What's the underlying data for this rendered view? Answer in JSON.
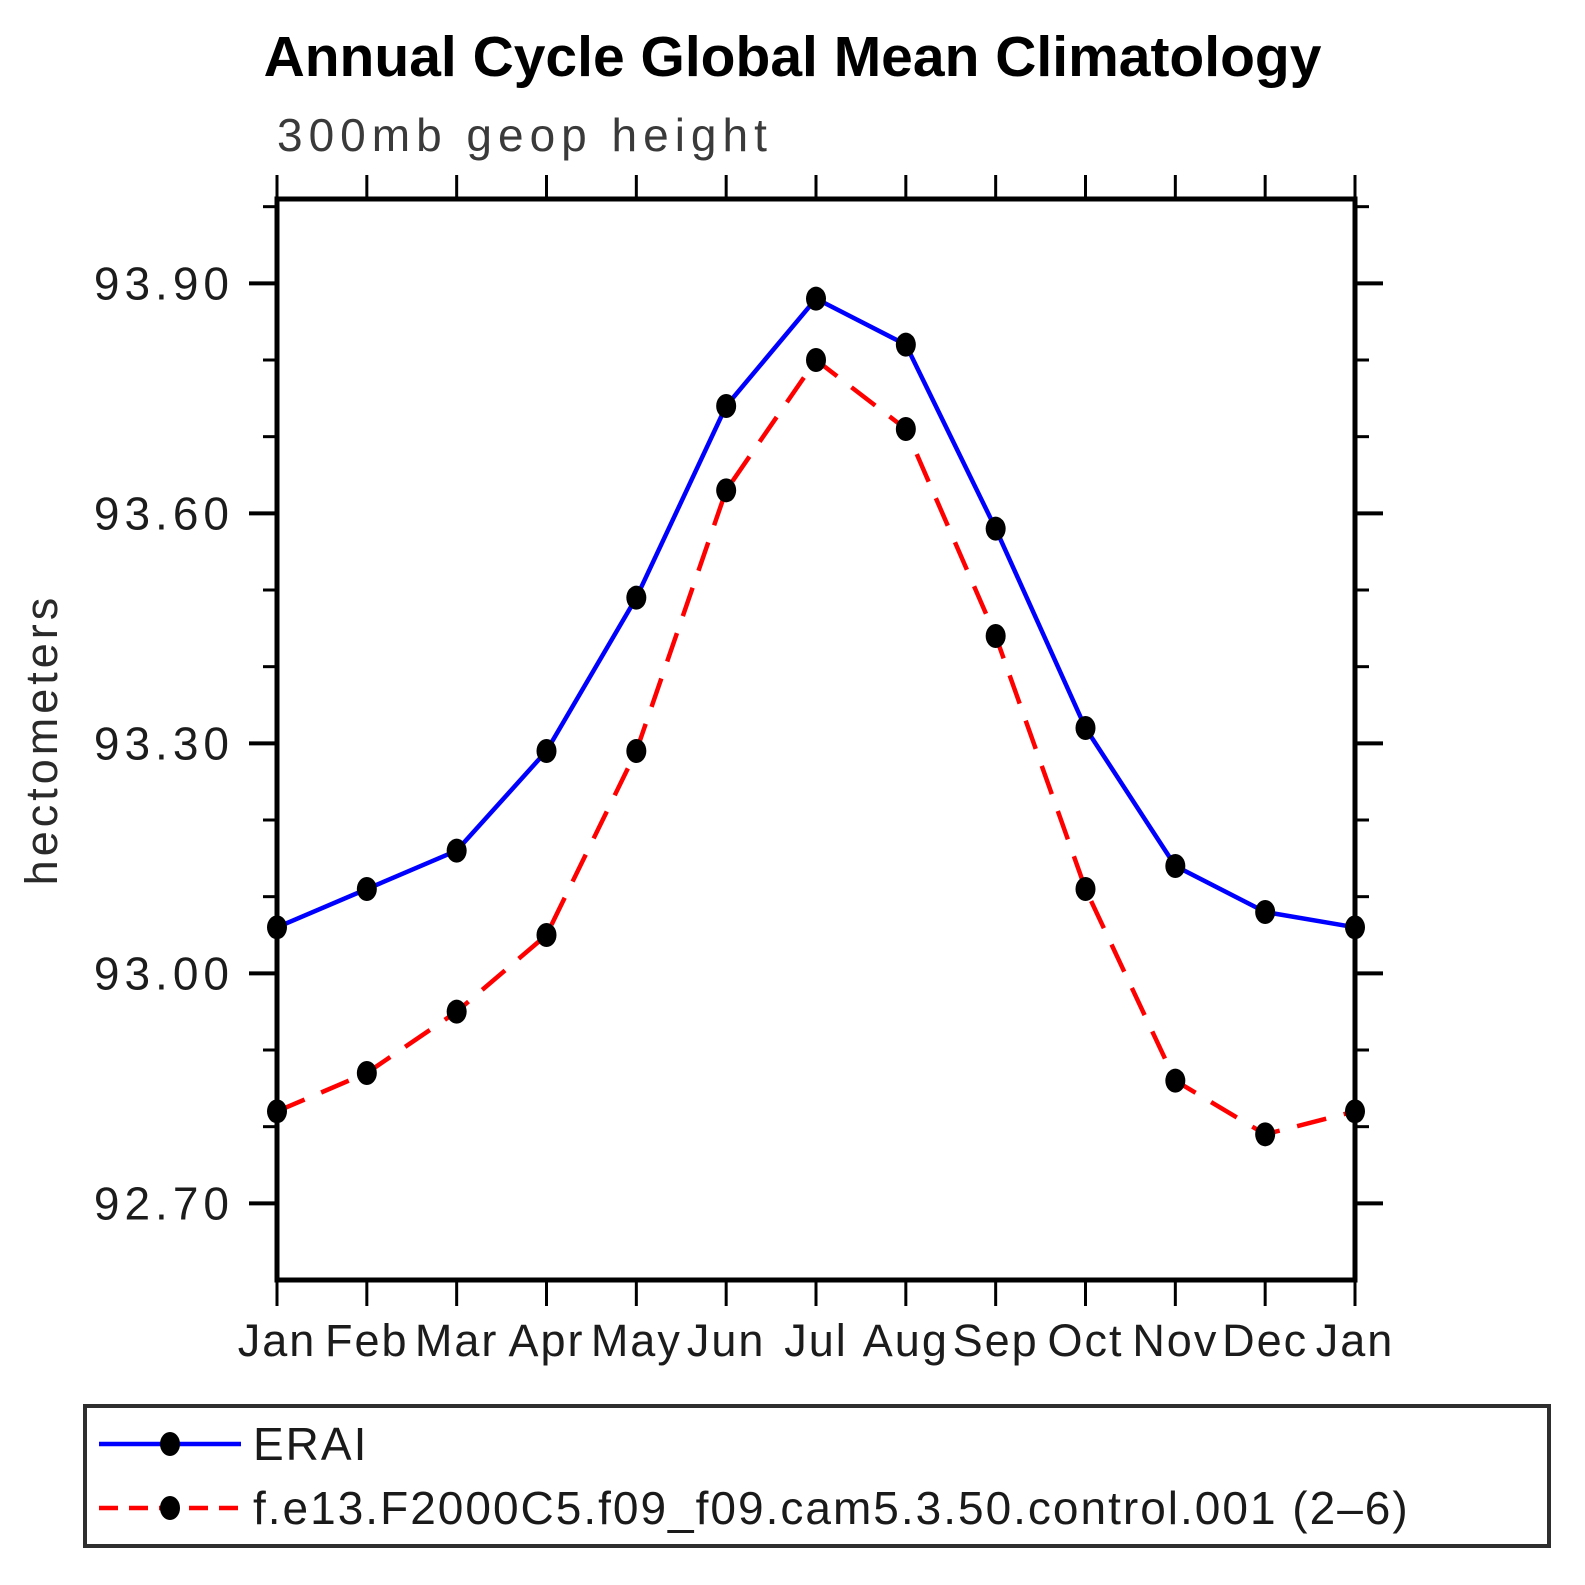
{
  "title": "Annual Cycle Global Mean Climatology",
  "subtitle": "300mb geop height",
  "marker_color": "#000000",
  "axis_color": "#000000",
  "chart_data": {
    "type": "line",
    "title": "Annual Cycle Global Mean Climatology",
    "subtitle": "300mb geop height",
    "ylabel": "hectometers",
    "x": [
      "Jan",
      "Feb",
      "Mar",
      "Apr",
      "May",
      "Jun",
      "Jul",
      "Aug",
      "Sep",
      "Oct",
      "Nov",
      "Dec",
      "Jan"
    ],
    "series": [
      {
        "name": "ERAI",
        "color": "#0000ff",
        "style": "solid",
        "marker": "filled-circle",
        "values": [
          93.06,
          93.11,
          93.16,
          93.29,
          93.49,
          93.74,
          93.88,
          93.82,
          93.58,
          93.32,
          93.14,
          93.08,
          93.06
        ]
      },
      {
        "name": "f.e13.F2000C5.f09_f09.cam5.3.50.control.001 (2–6)",
        "color": "#ff0000",
        "style": "dashed",
        "marker": "filled-circle",
        "values": [
          92.82,
          92.87,
          92.95,
          93.05,
          93.29,
          93.63,
          93.8,
          93.71,
          93.44,
          93.11,
          92.86,
          92.79,
          92.82
        ]
      }
    ],
    "ylim": [
      92.6,
      94.01
    ],
    "yticks": [
      92.7,
      93.0,
      93.3,
      93.6,
      93.9
    ],
    "ytick_labels": [
      "92.70",
      "93.00",
      "93.30",
      "93.60",
      "93.90"
    ],
    "y_minor_step": 0.1,
    "grid": false,
    "legend_position": "bottom"
  }
}
